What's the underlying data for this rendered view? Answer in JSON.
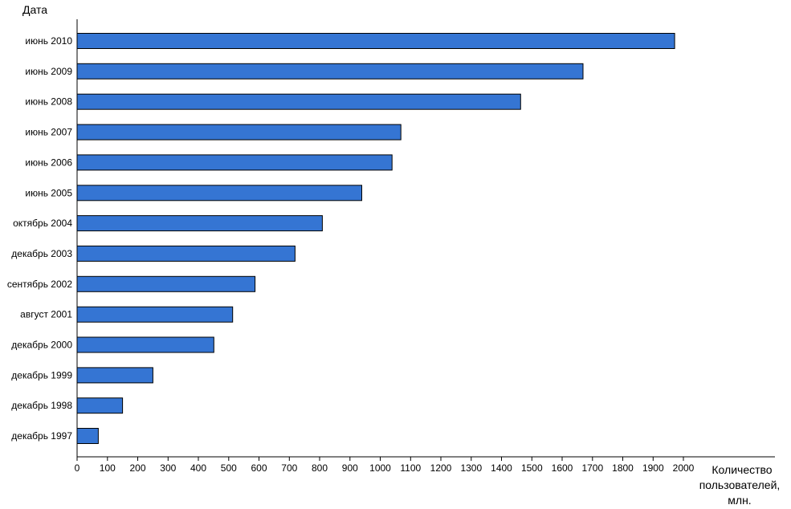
{
  "chart_data": {
    "type": "bar",
    "orientation": "horizontal",
    "title": "",
    "ylabel": "Дата",
    "xlabel_lines": [
      "Количество",
      "пользователей,",
      "млн."
    ],
    "categories": [
      "июнь 2010",
      "июнь 2009",
      "июнь 2008",
      "июнь 2007",
      "июнь 2006",
      "июнь 2005",
      "октябрь 2004",
      "декабрь 2003",
      "сентябрь 2002",
      "август 2001",
      "декабрь 2000",
      "декабрь 1999",
      "декабрь 1998",
      "декабрь 1997"
    ],
    "values": [
      1971,
      1669,
      1463,
      1068,
      1039,
      939,
      809,
      719,
      587,
      513,
      451,
      250,
      150,
      70
    ],
    "xlim": [
      0,
      2300
    ],
    "xticks": [
      0,
      100,
      200,
      300,
      400,
      500,
      600,
      700,
      800,
      900,
      1000,
      1100,
      1200,
      1300,
      1400,
      1500,
      1600,
      1700,
      1800,
      1900,
      2000
    ],
    "grid": false,
    "legend": "none",
    "colors": {
      "bar": "#3575d3",
      "outline": "#000000"
    }
  }
}
